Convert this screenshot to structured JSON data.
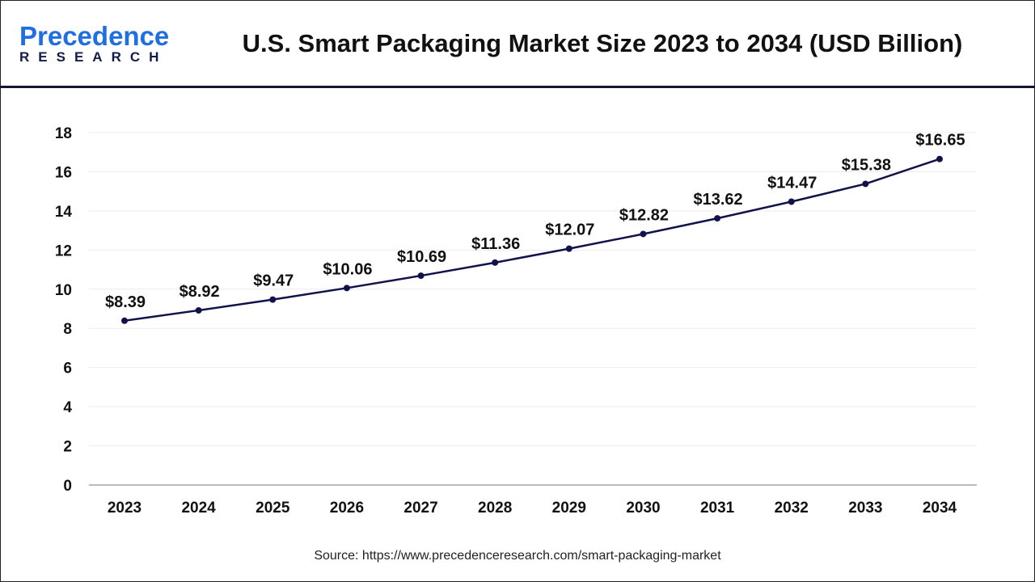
{
  "header": {
    "logo_line1": "Precedence",
    "logo_line2": "RESEARCH",
    "title": "U.S. Smart Packaging Market Size 2023 to 2034 (USD Billion)"
  },
  "chart_data": {
    "type": "line",
    "title": "U.S. Smart Packaging Market Size 2023 to 2034 (USD Billion)",
    "categories": [
      "2023",
      "2024",
      "2025",
      "2026",
      "2027",
      "2028",
      "2029",
      "2030",
      "2031",
      "2032",
      "2033",
      "2034"
    ],
    "values": [
      8.39,
      8.92,
      9.47,
      10.06,
      10.69,
      11.36,
      12.07,
      12.82,
      13.62,
      14.47,
      15.38,
      16.65
    ],
    "data_labels": [
      "$8.39",
      "$8.92",
      "$9.47",
      "$10.06",
      "$10.69",
      "$11.36",
      "$12.07",
      "$12.82",
      "$13.62",
      "$14.47",
      "$15.38",
      "$16.65"
    ],
    "yticks": [
      "0",
      "2",
      "4",
      "6",
      "8",
      "10",
      "12",
      "14",
      "16",
      "18"
    ],
    "ylim": [
      0,
      18
    ],
    "xlabel": "",
    "ylabel": "",
    "grid": true,
    "line_color": "#12124a"
  },
  "source": "Source: https://www.precedenceresearch.com/smart-packaging-market"
}
